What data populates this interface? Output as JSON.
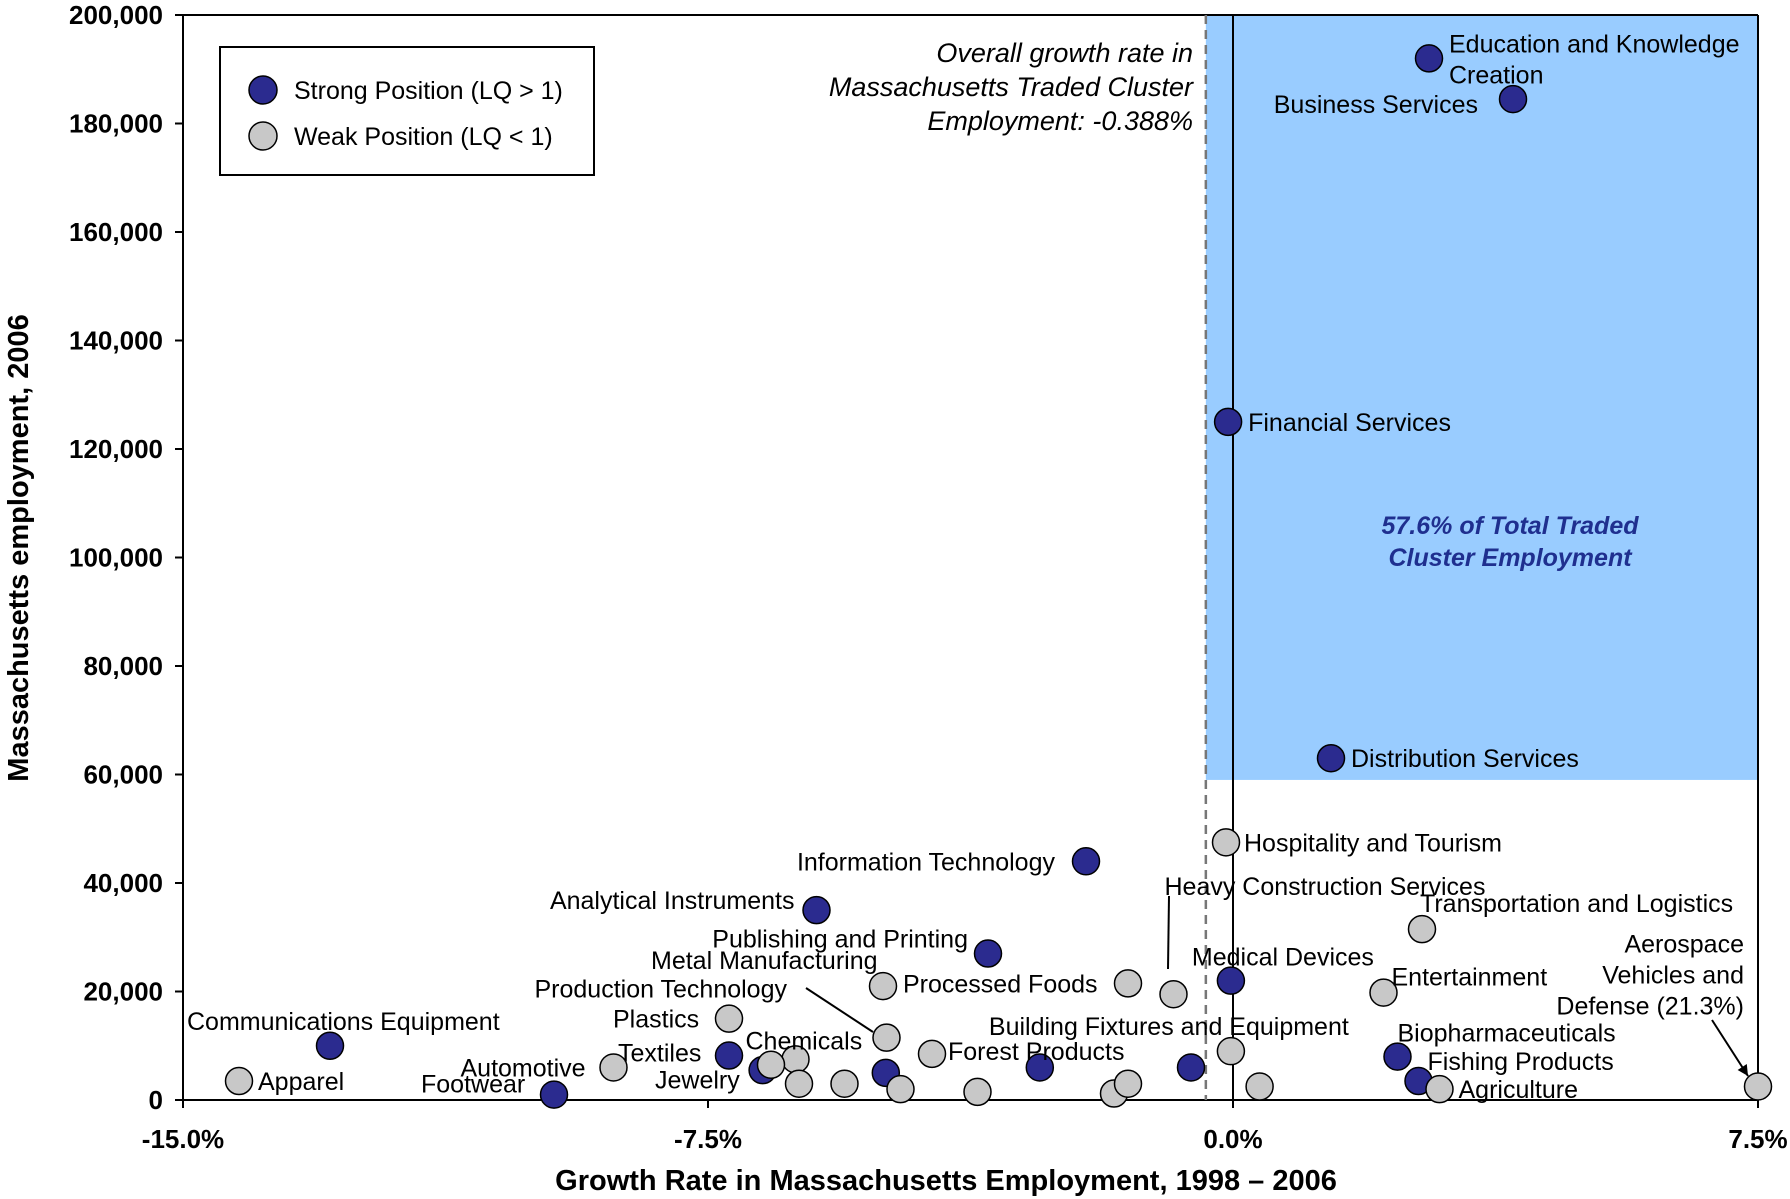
{
  "chart_data": {
    "type": "scatter",
    "xlabel": "Growth Rate in Massachusetts Employment, 1998 – 2006",
    "ylabel": "Massachusetts employment, 2006",
    "xlim": [
      -15.0,
      7.5
    ],
    "ylim": [
      0,
      200000
    ],
    "x_ticks": [
      "-15.0%",
      "-7.5%",
      "0.0%",
      "7.5%"
    ],
    "y_ticks": [
      "0",
      "20,000",
      "40,000",
      "60,000",
      "80,000",
      "100,000",
      "120,000",
      "140,000",
      "160,000",
      "180,000",
      "200,000"
    ],
    "grid": false,
    "legend_position": "top-left",
    "overall_growth_rate": -0.388,
    "overall_growth_note": [
      "Overall growth rate in",
      "Massachusetts Traded Cluster",
      "Employment:  -0.388%"
    ],
    "highlight_region": {
      "x_from": -0.388,
      "x_to": 7.5,
      "y_from": 59000,
      "y_to": 200000,
      "color": "#99ccff"
    },
    "region_note": [
      "57.6% of Total Traded",
      "Cluster Employment"
    ],
    "series": [
      {
        "name": "Strong Position (LQ > 1)",
        "color": "#2b2b8f",
        "points": [
          {
            "label": "Education and Knowledge Creation",
            "x": 2.8,
            "y": 192000
          },
          {
            "label": "Business Services",
            "x": 4.0,
            "y": 184500
          },
          {
            "label": "Financial Services",
            "x": -0.07,
            "y": 125000
          },
          {
            "label": "Distribution Services",
            "x": 1.4,
            "y": 63000
          },
          {
            "label": "Information Technology",
            "x": -2.1,
            "y": 44000
          },
          {
            "label": "Analytical Instruments",
            "x": -5.95,
            "y": 35000
          },
          {
            "label": "Publishing and Printing",
            "x": -3.5,
            "y": 27000
          },
          {
            "label": "Medical Devices",
            "x": -0.03,
            "y": 22000
          },
          {
            "label": "Communications Equipment",
            "x": -12.9,
            "y": 10000
          },
          {
            "label": "Footwear",
            "x": -9.7,
            "y": 1000
          },
          {
            "label": "Textiles",
            "x": -7.2,
            "y": 8200
          },
          {
            "label": "",
            "x": -6.72,
            "y": 5500
          },
          {
            "label": "",
            "x": -4.96,
            "y": 5000
          },
          {
            "label": "",
            "x": -2.76,
            "y": 6000
          },
          {
            "label": "",
            "x": -0.6,
            "y": 6000
          },
          {
            "label": "Biopharmaceuticals",
            "x": 2.35,
            "y": 8000
          },
          {
            "label": "Fishing Products",
            "x": 2.65,
            "y": 3500
          }
        ]
      },
      {
        "name": "Weak Position (LQ < 1)",
        "color": "#c8c8c8",
        "points": [
          {
            "label": "Hospitality and Tourism",
            "x": -0.1,
            "y": 47500
          },
          {
            "label": "Heavy Construction Services",
            "x": -0.85,
            "y": 19500
          },
          {
            "label": "Transportation and Logistics",
            "x": 2.7,
            "y": 31500
          },
          {
            "label": "Entertainment",
            "x": 2.15,
            "y": 19800
          },
          {
            "label": "Processed Foods",
            "x": -1.5,
            "y": 21500
          },
          {
            "label": "Metal Manufacturing",
            "x": -5.0,
            "y": 21000
          },
          {
            "label": "Production Technology",
            "x": -4.95,
            "y": 11500
          },
          {
            "label": "Plastics",
            "x": -7.2,
            "y": 15000
          },
          {
            "label": "Chemicals",
            "x": -6.25,
            "y": 7500
          },
          {
            "label": "Building Fixtures and Equipment",
            "x": -0.03,
            "y": 9000
          },
          {
            "label": "Forest Products",
            "x": -4.3,
            "y": 8500
          },
          {
            "label": "Automotive",
            "x": -8.85,
            "y": 6000
          },
          {
            "label": "Apparel",
            "x": -14.2,
            "y": 3500
          },
          {
            "label": "Jewelry",
            "x": -6.2,
            "y": 3000
          },
          {
            "label": "",
            "x": -6.6,
            "y": 6500
          },
          {
            "label": "",
            "x": -5.55,
            "y": 3000
          },
          {
            "label": "",
            "x": -4.75,
            "y": 2000
          },
          {
            "label": "",
            "x": -3.65,
            "y": 1500
          },
          {
            "label": "",
            "x": -1.7,
            "y": 1200
          },
          {
            "label": "",
            "x": -1.5,
            "y": 3000
          },
          {
            "label": "",
            "x": 0.38,
            "y": 2500
          },
          {
            "label": "Agriculture",
            "x": 2.95,
            "y": 2000
          },
          {
            "label": "Aerospace Vehicles and Defense (21.3%)",
            "x": 7.5,
            "y": 2500
          }
        ]
      }
    ]
  }
}
